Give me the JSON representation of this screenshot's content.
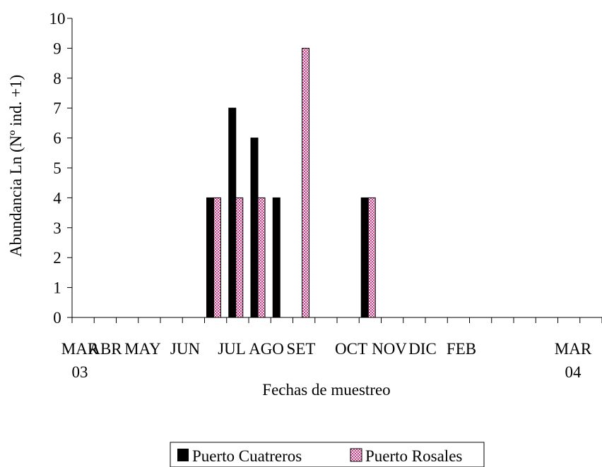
{
  "chart_data": {
    "type": "bar",
    "xlabel": "Fechas de muestreo",
    "ylabel": "Abundancia Ln (Nº ind. +1)",
    "ylim": [
      0,
      10
    ],
    "yticks": [
      "0",
      "1",
      "2",
      "3",
      "4",
      "5",
      "6",
      "7",
      "8",
      "9",
      "10"
    ],
    "grid": false,
    "legend_position": "bottom-center",
    "x_labels": [
      {
        "line1": "MAR",
        "line2": "03"
      },
      {
        "line1": "ABR",
        "line2": ""
      },
      {
        "line1": "MAY",
        "line2": ""
      },
      {
        "line1": "JUN",
        "line2": ""
      },
      {
        "line1": "JUL",
        "line2": ""
      },
      {
        "line1": "AGO",
        "line2": ""
      },
      {
        "line1": "SET",
        "line2": ""
      },
      {
        "line1": "OCT",
        "line2": ""
      },
      {
        "line1": "NOV",
        "line2": ""
      },
      {
        "line1": "DIC",
        "line2": ""
      },
      {
        "line1": "FEB",
        "line2": ""
      },
      {
        "line1": "MAR",
        "line2": "04"
      }
    ],
    "categories": [
      "c1",
      "c2",
      "c3",
      "c4",
      "c5",
      "c6",
      "c7",
      "c8",
      "c9",
      "c10",
      "c11",
      "c12",
      "c13",
      "c14",
      "c15",
      "c16",
      "c17",
      "c18",
      "c19",
      "c20",
      "c21",
      "c22",
      "c23",
      "c24"
    ],
    "series": [
      {
        "name": "Puerto Cuatreros",
        "color": "#000000",
        "pattern": "solid",
        "values": [
          0,
          0,
          0,
          0,
          0,
          0,
          4,
          7,
          6,
          4,
          0,
          0,
          0,
          4,
          0,
          0,
          0,
          0,
          0,
          0,
          0,
          0,
          0,
          0
        ]
      },
      {
        "name": "Puerto Rosales",
        "color": "#d98cb3",
        "pattern": "checkered",
        "values": [
          0,
          0,
          0,
          0,
          0,
          0,
          4,
          4,
          4,
          0,
          9,
          0,
          0,
          4,
          0,
          0,
          0,
          0,
          0,
          0,
          0,
          0,
          0,
          0
        ]
      }
    ]
  }
}
